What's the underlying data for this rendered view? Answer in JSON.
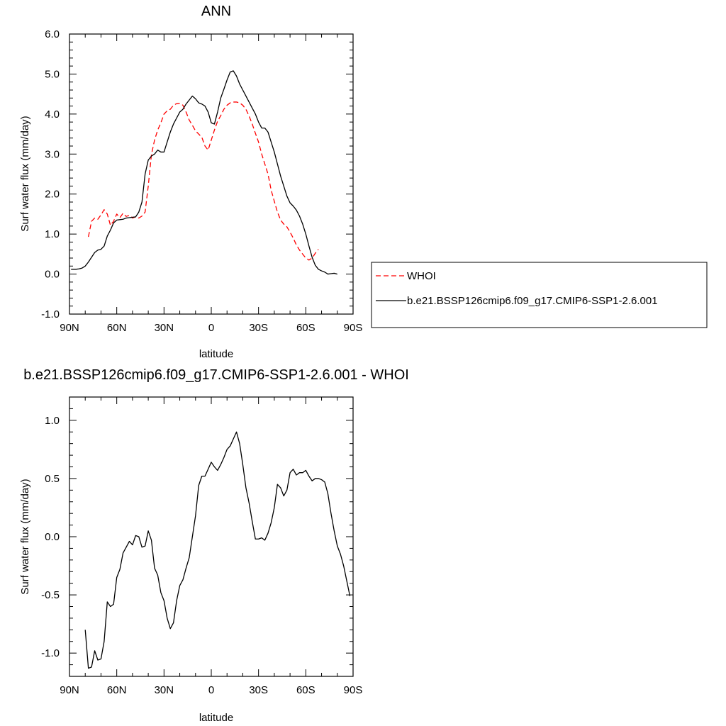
{
  "chart_data": [
    {
      "type": "line",
      "title": "ANN",
      "xlabel": "latitude",
      "ylabel": "Surf water flux (mm/day)",
      "xlim": [
        90,
        -90
      ],
      "ylim": [
        -1.0,
        6.0
      ],
      "xticks": [
        90,
        60,
        30,
        0,
        -30,
        -60,
        -90
      ],
      "xtick_labels": [
        "90N",
        "60N",
        "30N",
        "0",
        "30S",
        "60S",
        "90S"
      ],
      "yticks": [
        -1,
        0,
        1,
        2,
        3,
        4,
        5,
        6
      ],
      "ytick_labels": [
        "-1.0",
        "0.0",
        "1.0",
        "2.0",
        "3.0",
        "4.0",
        "5.0",
        "6.0"
      ],
      "grid": false,
      "legend_position": "right",
      "series": [
        {
          "name": "WHOI",
          "color": "#ff0000",
          "dash": "dashed",
          "points": [
            [
              78,
              0.93
            ],
            [
              76,
              1.32
            ],
            [
              74,
              1.4
            ],
            [
              72,
              1.37
            ],
            [
              70,
              1.48
            ],
            [
              68,
              1.61
            ],
            [
              66,
              1.5
            ],
            [
              64,
              1.22
            ],
            [
              62,
              1.32
            ],
            [
              60,
              1.5
            ],
            [
              58,
              1.41
            ],
            [
              56,
              1.52
            ],
            [
              54,
              1.44
            ],
            [
              52,
              1.47
            ],
            [
              50,
              1.4
            ],
            [
              48,
              1.43
            ],
            [
              46,
              1.4
            ],
            [
              44,
              1.45
            ],
            [
              42,
              1.55
            ],
            [
              40,
              2.2
            ],
            [
              38,
              2.98
            ],
            [
              36,
              3.35
            ],
            [
              34,
              3.6
            ],
            [
              32,
              3.78
            ],
            [
              30,
              4.0
            ],
            [
              28,
              4.08
            ],
            [
              26,
              4.12
            ],
            [
              24,
              4.22
            ],
            [
              22,
              4.26
            ],
            [
              20,
              4.27
            ],
            [
              18,
              4.22
            ],
            [
              16,
              4.05
            ],
            [
              14,
              3.85
            ],
            [
              12,
              3.72
            ],
            [
              10,
              3.58
            ],
            [
              8,
              3.5
            ],
            [
              6,
              3.42
            ],
            [
              4,
              3.2
            ],
            [
              2,
              3.1
            ],
            [
              0,
              3.35
            ],
            [
              -2,
              3.6
            ],
            [
              -4,
              3.82
            ],
            [
              -6,
              3.96
            ],
            [
              -8,
              4.12
            ],
            [
              -10,
              4.22
            ],
            [
              -12,
              4.28
            ],
            [
              -14,
              4.3
            ],
            [
              -16,
              4.3
            ],
            [
              -18,
              4.28
            ],
            [
              -20,
              4.22
            ],
            [
              -22,
              4.12
            ],
            [
              -24,
              3.95
            ],
            [
              -26,
              3.75
            ],
            [
              -28,
              3.52
            ],
            [
              -30,
              3.3
            ],
            [
              -32,
              3.0
            ],
            [
              -34,
              2.75
            ],
            [
              -36,
              2.5
            ],
            [
              -38,
              2.1
            ],
            [
              -40,
              1.82
            ],
            [
              -42,
              1.55
            ],
            [
              -44,
              1.35
            ],
            [
              -46,
              1.25
            ],
            [
              -48,
              1.18
            ],
            [
              -50,
              1.05
            ],
            [
              -52,
              0.9
            ],
            [
              -54,
              0.73
            ],
            [
              -56,
              0.6
            ],
            [
              -58,
              0.5
            ],
            [
              -60,
              0.4
            ],
            [
              -62,
              0.35
            ],
            [
              -64,
              0.4
            ],
            [
              -66,
              0.52
            ],
            [
              -68,
              0.62
            ]
          ]
        },
        {
          "name": "b.e21.BSSP126cmip6.f09_g17.CMIP6-SSP1-2.6.001",
          "color": "#000000",
          "dash": "solid",
          "points": [
            [
              89,
              0.12
            ],
            [
              86,
              0.12
            ],
            [
              84,
              0.13
            ],
            [
              82,
              0.15
            ],
            [
              80,
              0.2
            ],
            [
              78,
              0.3
            ],
            [
              76,
              0.42
            ],
            [
              74,
              0.54
            ],
            [
              72,
              0.6
            ],
            [
              70,
              0.62
            ],
            [
              68,
              0.7
            ],
            [
              66,
              0.95
            ],
            [
              64,
              1.1
            ],
            [
              62,
              1.28
            ],
            [
              60,
              1.35
            ],
            [
              58,
              1.36
            ],
            [
              56,
              1.37
            ],
            [
              54,
              1.4
            ],
            [
              52,
              1.41
            ],
            [
              50,
              1.42
            ],
            [
              48,
              1.43
            ],
            [
              46,
              1.55
            ],
            [
              44,
              1.8
            ],
            [
              42,
              2.5
            ],
            [
              40,
              2.85
            ],
            [
              38,
              2.95
            ],
            [
              36,
              3.0
            ],
            [
              34,
              3.1
            ],
            [
              32,
              3.05
            ],
            [
              30,
              3.05
            ],
            [
              28,
              3.3
            ],
            [
              26,
              3.55
            ],
            [
              24,
              3.75
            ],
            [
              22,
              3.9
            ],
            [
              20,
              4.05
            ],
            [
              18,
              4.12
            ],
            [
              16,
              4.25
            ],
            [
              14,
              4.35
            ],
            [
              12,
              4.45
            ],
            [
              10,
              4.38
            ],
            [
              8,
              4.28
            ],
            [
              6,
              4.25
            ],
            [
              4,
              4.2
            ],
            [
              2,
              4.05
            ],
            [
              0,
              3.78
            ],
            [
              -2,
              3.75
            ],
            [
              -4,
              4.05
            ],
            [
              -6,
              4.4
            ],
            [
              -8,
              4.62
            ],
            [
              -10,
              4.85
            ],
            [
              -12,
              5.05
            ],
            [
              -14,
              5.08
            ],
            [
              -16,
              4.95
            ],
            [
              -18,
              4.75
            ],
            [
              -20,
              4.6
            ],
            [
              -22,
              4.45
            ],
            [
              -24,
              4.3
            ],
            [
              -26,
              4.15
            ],
            [
              -28,
              4.0
            ],
            [
              -30,
              3.8
            ],
            [
              -32,
              3.65
            ],
            [
              -34,
              3.65
            ],
            [
              -36,
              3.55
            ],
            [
              -38,
              3.3
            ],
            [
              -40,
              3.05
            ],
            [
              -42,
              2.75
            ],
            [
              -44,
              2.45
            ],
            [
              -46,
              2.2
            ],
            [
              -48,
              1.95
            ],
            [
              -50,
              1.78
            ],
            [
              -52,
              1.7
            ],
            [
              -54,
              1.6
            ],
            [
              -56,
              1.45
            ],
            [
              -58,
              1.25
            ],
            [
              -60,
              1.0
            ],
            [
              -62,
              0.7
            ],
            [
              -64,
              0.42
            ],
            [
              -66,
              0.22
            ],
            [
              -68,
              0.12
            ],
            [
              -70,
              0.08
            ],
            [
              -72,
              0.05
            ],
            [
              -74,
              0.0
            ],
            [
              -76,
              0.01
            ],
            [
              -78,
              0.02
            ],
            [
              -80,
              0.0
            ]
          ]
        }
      ]
    },
    {
      "type": "line",
      "title": "b.e21.BSSP126cmip6.f09_g17.CMIP6-SSP1-2.6.001 - WHOI",
      "xlabel": "latitude",
      "ylabel": "Surf water flux (mm/day)",
      "xlim": [
        90,
        -90
      ],
      "ylim": [
        -1.2,
        1.2
      ],
      "xticks": [
        90,
        60,
        30,
        0,
        -30,
        -60,
        -90
      ],
      "xtick_labels": [
        "90N",
        "60N",
        "30N",
        "0",
        "30S",
        "60S",
        "90S"
      ],
      "yticks": [
        -1.0,
        -0.5,
        0.0,
        0.5,
        1.0
      ],
      "ytick_labels": [
        "-1.0",
        "-0.5",
        "0.0",
        "0.5",
        "1.0"
      ],
      "grid": false,
      "series": [
        {
          "color": "#000000",
          "dash": "solid",
          "points": [
            [
              80,
              -0.8
            ],
            [
              78,
              -1.13
            ],
            [
              76,
              -1.12
            ],
            [
              74,
              -0.98
            ],
            [
              72,
              -1.06
            ],
            [
              70,
              -1.05
            ],
            [
              68,
              -0.9
            ],
            [
              66,
              -0.56
            ],
            [
              64,
              -0.6
            ],
            [
              62,
              -0.58
            ],
            [
              60,
              -0.35
            ],
            [
              58,
              -0.28
            ],
            [
              56,
              -0.14
            ],
            [
              54,
              -0.09
            ],
            [
              52,
              -0.04
            ],
            [
              50,
              -0.07
            ],
            [
              48,
              0.01
            ],
            [
              46,
              0.0
            ],
            [
              44,
              -0.09
            ],
            [
              42,
              -0.08
            ],
            [
              40,
              0.05
            ],
            [
              38,
              -0.03
            ],
            [
              36,
              -0.27
            ],
            [
              34,
              -0.33
            ],
            [
              32,
              -0.48
            ],
            [
              30,
              -0.55
            ],
            [
              28,
              -0.7
            ],
            [
              26,
              -0.79
            ],
            [
              24,
              -0.74
            ],
            [
              22,
              -0.55
            ],
            [
              20,
              -0.42
            ],
            [
              18,
              -0.37
            ],
            [
              16,
              -0.27
            ],
            [
              14,
              -0.18
            ],
            [
              12,
              0.0
            ],
            [
              10,
              0.18
            ],
            [
              8,
              0.44
            ],
            [
              6,
              0.52
            ],
            [
              4,
              0.52
            ],
            [
              2,
              0.58
            ],
            [
              0,
              0.64
            ],
            [
              -2,
              0.6
            ],
            [
              -4,
              0.57
            ],
            [
              -6,
              0.62
            ],
            [
              -8,
              0.68
            ],
            [
              -10,
              0.75
            ],
            [
              -12,
              0.78
            ],
            [
              -14,
              0.84
            ],
            [
              -16,
              0.9
            ],
            [
              -18,
              0.8
            ],
            [
              -20,
              0.62
            ],
            [
              -22,
              0.42
            ],
            [
              -24,
              0.29
            ],
            [
              -26,
              0.13
            ],
            [
              -28,
              -0.02
            ],
            [
              -30,
              -0.02
            ],
            [
              -32,
              -0.01
            ],
            [
              -34,
              -0.03
            ],
            [
              -36,
              0.03
            ],
            [
              -38,
              0.12
            ],
            [
              -40,
              0.25
            ],
            [
              -42,
              0.45
            ],
            [
              -44,
              0.42
            ],
            [
              -46,
              0.35
            ],
            [
              -48,
              0.4
            ],
            [
              -50,
              0.55
            ],
            [
              -52,
              0.58
            ],
            [
              -54,
              0.53
            ],
            [
              -56,
              0.55
            ],
            [
              -58,
              0.55
            ],
            [
              -60,
              0.57
            ],
            [
              -62,
              0.52
            ],
            [
              -64,
              0.48
            ],
            [
              -66,
              0.5
            ],
            [
              -68,
              0.5
            ],
            [
              -70,
              0.49
            ],
            [
              -72,
              0.47
            ],
            [
              -74,
              0.37
            ],
            [
              -76,
              0.2
            ],
            [
              -78,
              0.05
            ],
            [
              -80,
              -0.08
            ],
            [
              -82,
              -0.15
            ],
            [
              -84,
              -0.25
            ],
            [
              -86,
              -0.38
            ],
            [
              -88,
              -0.51
            ]
          ]
        }
      ]
    }
  ]
}
